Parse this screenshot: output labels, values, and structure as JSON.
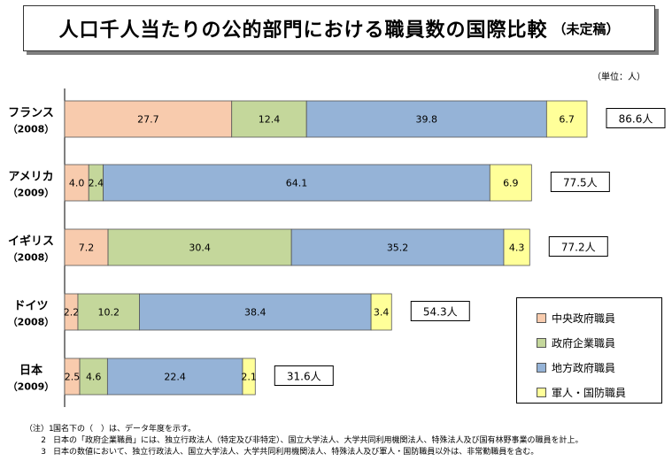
{
  "title": "人口千人当たりの公的部門における職員数の国際比較",
  "title_note": "（未定稿）",
  "unit": "（単位：人）",
  "chart_data": {
    "type": "bar",
    "orientation": "horizontal",
    "stacked": true,
    "categories": [
      {
        "name": "フランス",
        "year": "（2008）",
        "total": "86.6人"
      },
      {
        "name": "アメリカ",
        "year": "（2009）",
        "total": "77.5人"
      },
      {
        "name": "イギリス",
        "year": "（2008）",
        "total": "77.2人"
      },
      {
        "name": "ドイツ",
        "year": "（2008）",
        "total": "54.3人"
      },
      {
        "name": "日本",
        "year": "（2009）",
        "total": "31.6人"
      }
    ],
    "series": [
      {
        "name": "中央政府職員",
        "color": "#f8cbad",
        "values": [
          27.7,
          4.0,
          7.2,
          2.2,
          2.5
        ]
      },
      {
        "name": "政府企業職員",
        "color": "#c4d79b",
        "values": [
          12.4,
          2.4,
          30.4,
          10.2,
          4.6
        ]
      },
      {
        "name": "地方政府職員",
        "color": "#95b3d7",
        "values": [
          39.8,
          64.1,
          35.2,
          38.4,
          22.4
        ]
      },
      {
        "name": "軍人・国防職員",
        "color": "#ffff99",
        "values": [
          6.7,
          6.9,
          4.3,
          3.4,
          2.1
        ]
      }
    ],
    "value_labels": [
      [
        "27.7",
        "12.4",
        "39.8",
        "6.7"
      ],
      [
        "4.0",
        "2.4",
        "64.1",
        "6.9"
      ],
      [
        "7.2",
        "30.4",
        "35.2",
        "4.3"
      ],
      [
        "2.2",
        "10.2",
        "38.4",
        "3.4"
      ],
      [
        "2.5",
        "4.6",
        "22.4",
        "2.1"
      ]
    ],
    "xlim": [
      0,
      86.6
    ],
    "grid": false,
    "legend_position": "bottom-right"
  },
  "notes": [
    {
      "num": "（注）1",
      "text": "国名下の（　）は、データ年度を示す。"
    },
    {
      "num": "2",
      "text": "日本の「政府企業職員」には、独立行政法人（特定及び非特定）、国立大学法人、大学共同利用機関法人、特殊法人及び国有林野事業の職員を計上。"
    },
    {
      "num": "3",
      "text": "日本の数値において、独立行政法人、国立大学法人、大学共同利用機関法人、特殊法人及び軍人・国防職員以外は、非常勤職員を含む。"
    }
  ]
}
